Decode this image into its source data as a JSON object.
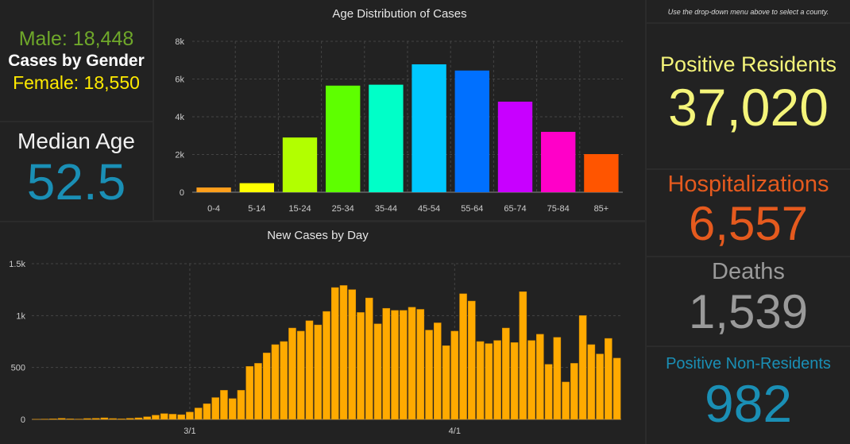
{
  "gender": {
    "male_text": "Male: 18,448",
    "title": "Cases by Gender",
    "female_text": "Female: 18,550",
    "male_color": "#6fa82a",
    "female_color": "#ffea00"
  },
  "median_age": {
    "title": "Median Age",
    "value": "52.5",
    "value_color": "#1a8fb5"
  },
  "instruction": "Use the drop-down menu above to select a county.",
  "stats": [
    {
      "key": "positive_residents",
      "title": "Positive Residents",
      "value": "37,020",
      "title_color": "#f4f47a",
      "value_color": "#f4f47a"
    },
    {
      "key": "hospitalizations",
      "title": "Hospitalizations",
      "value": "6,557",
      "title_color": "#e55a1e",
      "value_color": "#e55a1e"
    },
    {
      "key": "deaths",
      "title": "Deaths",
      "value": "1,539",
      "title_color": "#9a9a9a",
      "value_color": "#9a9a9a"
    },
    {
      "key": "non_residents",
      "title": "Positive Non-Residents",
      "value": "982",
      "title_color": "#1a8fb5",
      "value_color": "#1a8fb5"
    }
  ],
  "chart_data": [
    {
      "type": "bar",
      "title": "Age Distribution of Cases",
      "categories": [
        "0-4",
        "5-14",
        "15-24",
        "25-34",
        "35-44",
        "45-54",
        "55-64",
        "65-74",
        "75-84",
        "85+"
      ],
      "values": [
        250,
        480,
        2900,
        5650,
        5700,
        6780,
        6450,
        4800,
        3200,
        2020
      ],
      "colors": [
        "#ff9f1c",
        "#ffff00",
        "#b2ff00",
        "#5eff00",
        "#00ffc8",
        "#00c8ff",
        "#0070ff",
        "#c800ff",
        "#ff00c8",
        "#ff5500"
      ],
      "ylim": [
        0,
        8000
      ],
      "yticks": [
        0,
        2000,
        4000,
        6000,
        8000
      ],
      "ytick_labels": [
        "0",
        "2k",
        "4k",
        "6k",
        "8k"
      ],
      "grid": true
    },
    {
      "type": "bar",
      "title": "New Cases by Day",
      "color": "#ffaa00",
      "values": [
        2,
        3,
        5,
        10,
        5,
        3,
        8,
        10,
        15,
        8,
        5,
        10,
        15,
        25,
        40,
        55,
        50,
        45,
        70,
        110,
        150,
        210,
        280,
        200,
        280,
        510,
        540,
        640,
        720,
        750,
        880,
        850,
        950,
        910,
        1040,
        1270,
        1290,
        1250,
        1030,
        1170,
        920,
        1070,
        1050,
        1050,
        1080,
        1060,
        860,
        930,
        710,
        850,
        1210,
        1140,
        750,
        730,
        760,
        880,
        740,
        1230,
        760,
        820,
        530,
        790,
        360,
        540,
        1000,
        720,
        630,
        780,
        590
      ],
      "xtick_labels": [
        "3/1",
        "4/1"
      ],
      "xtick_indices": [
        18,
        49
      ],
      "ylim": [
        0,
        1500
      ],
      "yticks": [
        0,
        500,
        1000,
        1500
      ],
      "ytick_labels": [
        "0",
        "500",
        "1k",
        "1.5k"
      ],
      "grid": true
    }
  ]
}
